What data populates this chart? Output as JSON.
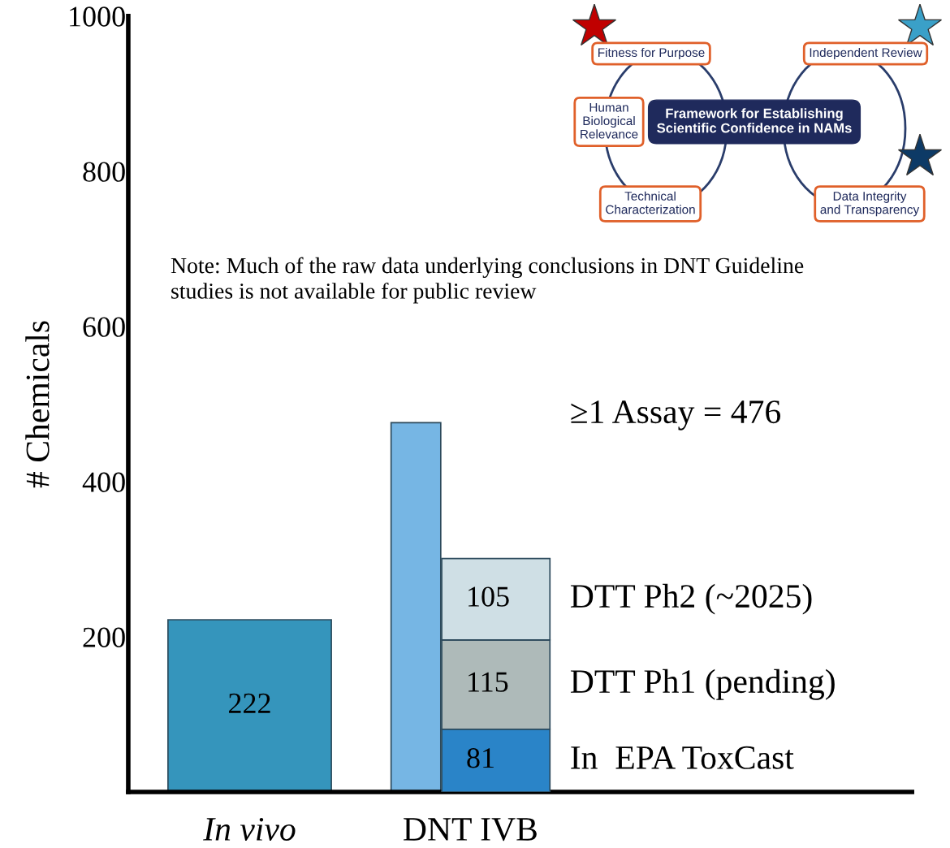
{
  "chart_data": {
    "type": "bar",
    "ylabel": "# Chemicals",
    "categories": [
      "In vivo",
      "DNT IVB"
    ],
    "series": [
      {
        "color": "#3595bc",
        "values": [
          222,
          null
        ],
        "value_labels": [
          "222",
          null
        ]
      },
      {
        "name": "≥1 Assay = 476",
        "color": "#76b6e4",
        "values": [
          null,
          476
        ]
      },
      {
        "name": "In  EPA ToxCast",
        "color": "#2a84c8",
        "values": [
          null,
          81
        ],
        "base": [
          null,
          0
        ],
        "value_labels": [
          null,
          "81"
        ]
      },
      {
        "name": "DTT Ph1 (pending)",
        "color": "#aebab9",
        "values": [
          null,
          115
        ],
        "base": [
          null,
          81
        ],
        "value_labels": [
          null,
          "115"
        ]
      },
      {
        "name": "DTT Ph2 (~2025)",
        "color": "#cfdfe5",
        "values": [
          null,
          105
        ],
        "base": [
          null,
          196
        ],
        "value_labels": [
          null,
          "105"
        ]
      }
    ],
    "ylim": [
      0,
      1000
    ],
    "yticks": [
      200,
      400,
      600,
      800,
      1000
    ],
    "grid": false,
    "legend": false,
    "annotations": [
      "Note: Much of the raw data underlying conclusions in DNT Guideline\nstudies is not available for public review",
      "Framework for Establishing\nScientific Confidence in NAMs",
      "Fitness for Purpose",
      "Independent Review",
      "Human\nBiological\nRelevance",
      "Technical\nCharacterization",
      "Data Integrity\nand Transparency"
    ]
  }
}
